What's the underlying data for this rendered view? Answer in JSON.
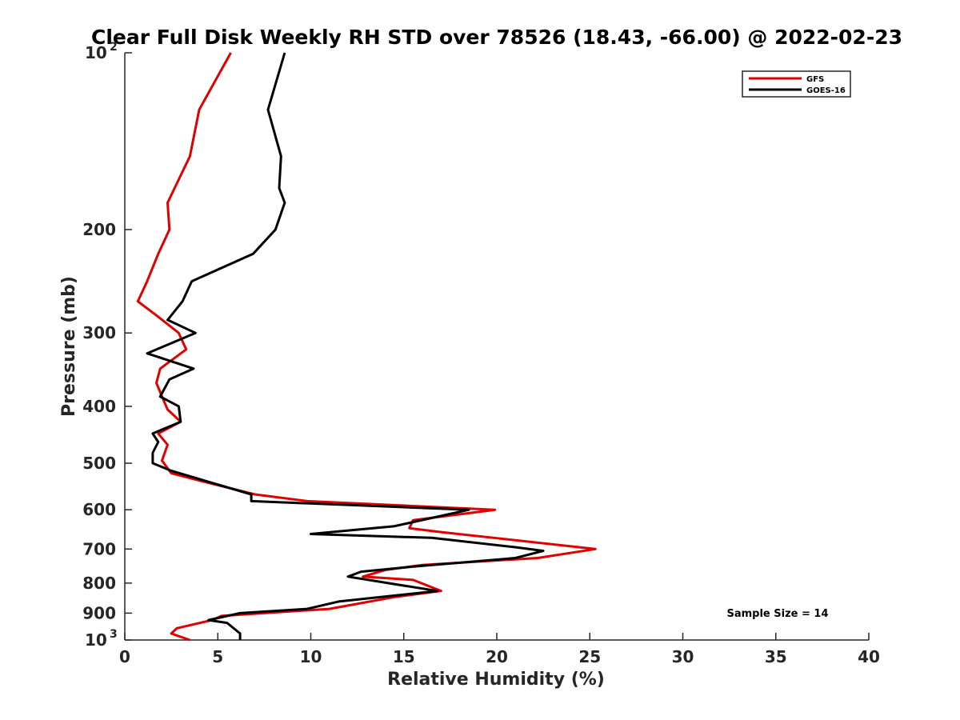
{
  "chart_data": {
    "type": "line",
    "title": "Clear Full Disk Weekly RH STD over 78526 (18.43, -66.00) @ 2022-02-23",
    "xlabel": "Relative Humidity (%)",
    "ylabel": "Pressure (mb)",
    "xlim": [
      0,
      40
    ],
    "ylim": [
      100,
      1000
    ],
    "y_scale": "log",
    "y_reversed": true,
    "grid": false,
    "x_ticks": [
      0,
      5,
      10,
      15,
      20,
      25,
      30,
      35,
      40
    ],
    "x_tick_labels": [
      "0",
      "5",
      "10",
      "15",
      "20",
      "25",
      "30",
      "35",
      "40"
    ],
    "y_ticks": [
      {
        "value": 100,
        "base": "10",
        "exp": "2"
      },
      {
        "value": 200,
        "label": "200"
      },
      {
        "value": 300,
        "label": "300"
      },
      {
        "value": 400,
        "label": "400"
      },
      {
        "value": 500,
        "label": "500"
      },
      {
        "value": 600,
        "label": "600"
      },
      {
        "value": 700,
        "label": "700"
      },
      {
        "value": 800,
        "label": "800"
      },
      {
        "value": 900,
        "label": "900"
      },
      {
        "value": 1000,
        "base": "10",
        "exp": "3"
      }
    ],
    "legend": {
      "position": "top-right"
    },
    "annotation": "Sample Size = 14",
    "series": [
      {
        "name": "GFS",
        "color": "#e00000",
        "points": [
          [
            5.7,
            100
          ],
          [
            4.0,
            125
          ],
          [
            3.5,
            150
          ],
          [
            2.3,
            180
          ],
          [
            2.4,
            200
          ],
          [
            1.8,
            220
          ],
          [
            1.2,
            245
          ],
          [
            0.7,
            265
          ],
          [
            1.7,
            280
          ],
          [
            2.9,
            300
          ],
          [
            3.3,
            320
          ],
          [
            1.9,
            345
          ],
          [
            1.7,
            365
          ],
          [
            2.0,
            385
          ],
          [
            2.3,
            405
          ],
          [
            3.0,
            425
          ],
          [
            1.8,
            445
          ],
          [
            2.3,
            465
          ],
          [
            2.0,
            495
          ],
          [
            2.5,
            520
          ],
          [
            4.5,
            540
          ],
          [
            7.0,
            565
          ],
          [
            9.8,
            580
          ],
          [
            19.9,
            600
          ],
          [
            15.5,
            625
          ],
          [
            15.3,
            645
          ],
          [
            17.0,
            655
          ],
          [
            25.3,
            700
          ],
          [
            22.2,
            725
          ],
          [
            16.0,
            745
          ],
          [
            14.0,
            760
          ],
          [
            12.8,
            780
          ],
          [
            15.5,
            790
          ],
          [
            17.0,
            825
          ],
          [
            14.5,
            845
          ],
          [
            11.0,
            885
          ],
          [
            5.2,
            910
          ],
          [
            4.7,
            925
          ],
          [
            2.8,
            955
          ],
          [
            2.5,
            975
          ],
          [
            3.5,
            1000
          ]
        ]
      },
      {
        "name": "GOES-16",
        "color": "#000000",
        "points": [
          [
            8.6,
            100
          ],
          [
            7.7,
            125
          ],
          [
            8.4,
            150
          ],
          [
            8.3,
            170
          ],
          [
            8.6,
            180
          ],
          [
            8.1,
            200
          ],
          [
            6.9,
            220
          ],
          [
            3.6,
            245
          ],
          [
            3.1,
            265
          ],
          [
            2.3,
            285
          ],
          [
            3.8,
            300
          ],
          [
            1.2,
            325
          ],
          [
            3.7,
            345
          ],
          [
            2.4,
            360
          ],
          [
            1.9,
            385
          ],
          [
            2.9,
            400
          ],
          [
            3.0,
            425
          ],
          [
            1.5,
            445
          ],
          [
            1.8,
            460
          ],
          [
            1.5,
            480
          ],
          [
            1.5,
            500
          ],
          [
            2.5,
            515
          ],
          [
            6.8,
            565
          ],
          [
            6.8,
            580
          ],
          [
            18.5,
            600
          ],
          [
            14.5,
            640
          ],
          [
            10.0,
            660
          ],
          [
            16.5,
            670
          ],
          [
            21.0,
            695
          ],
          [
            22.5,
            705
          ],
          [
            21.0,
            725
          ],
          [
            15.5,
            750
          ],
          [
            12.7,
            765
          ],
          [
            12.0,
            780
          ],
          [
            16.8,
            825
          ],
          [
            11.5,
            860
          ],
          [
            9.8,
            885
          ],
          [
            6.2,
            900
          ],
          [
            4.5,
            925
          ],
          [
            5.5,
            935
          ],
          [
            6.2,
            975
          ],
          [
            6.2,
            1000
          ]
        ]
      }
    ]
  }
}
